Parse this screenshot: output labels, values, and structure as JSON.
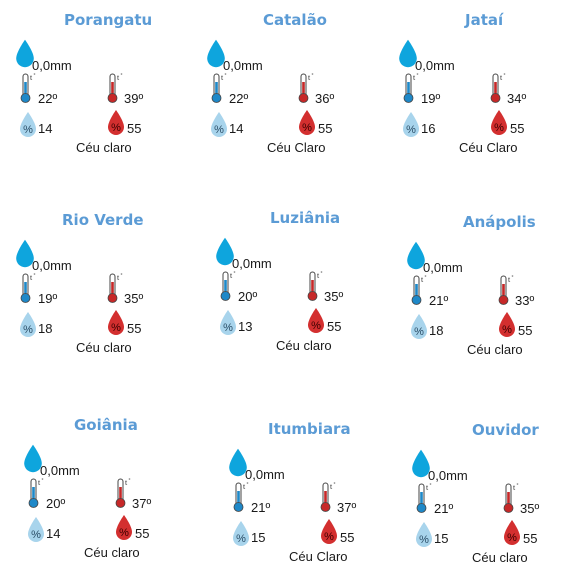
{
  "colors": {
    "title": "#5b9bd5",
    "rain_drop": "#0ea5dd",
    "cold_thermo": "#1e88c8",
    "hot_thermo": "#c62828",
    "humidity_low": "#a8d4ec",
    "humidity_high": "#d32f2f"
  },
  "cities": [
    {
      "name": "Porangatu",
      "rain": "0,0mm",
      "tmin": "22º",
      "tmax": "39º",
      "hmax": "14",
      "hmin": "55",
      "cond": "Céu claro"
    },
    {
      "name": "Catalão",
      "rain": "0,0mm",
      "tmin": "22º",
      "tmax": "36º",
      "hmax": "14",
      "hmin": "55",
      "cond": "Céu Claro"
    },
    {
      "name": "Jataí",
      "rain": "0,0mm",
      "tmin": "19º",
      "tmax": "34º",
      "hmax": "16",
      "hmin": "55",
      "cond": "Céu Claro"
    },
    {
      "name": "Rio Verde",
      "rain": "0,0mm",
      "tmin": "19º",
      "tmax": "35º",
      "hmax": "18",
      "hmin": "55",
      "cond": "Céu claro"
    },
    {
      "name": "Luziânia",
      "rain": "0,0mm",
      "tmin": "20º",
      "tmax": "35º",
      "hmax": "13",
      "hmin": "55",
      "cond": "Céu claro"
    },
    {
      "name": "Anápolis",
      "rain": "0,0mm",
      "tmin": "21º",
      "tmax": "33º",
      "hmax": "18",
      "hmin": "55",
      "cond": "Céu claro"
    },
    {
      "name": "Goiânia",
      "rain": "0,0mm",
      "tmin": "20º",
      "tmax": "37º",
      "hmax": "14",
      "hmin": "55",
      "cond": "Céu claro"
    },
    {
      "name": "Itumbiara",
      "rain": "0,0mm",
      "tmin": "21º",
      "tmax": "37º",
      "hmax": "15",
      "hmin": "55",
      "cond": "Céu Claro"
    },
    {
      "name": "Ouvidor",
      "rain": "0,0mm",
      "tmin": "21º",
      "tmax": "35º",
      "hmax": "15",
      "hmin": "55",
      "cond": "Céu claro"
    }
  ]
}
